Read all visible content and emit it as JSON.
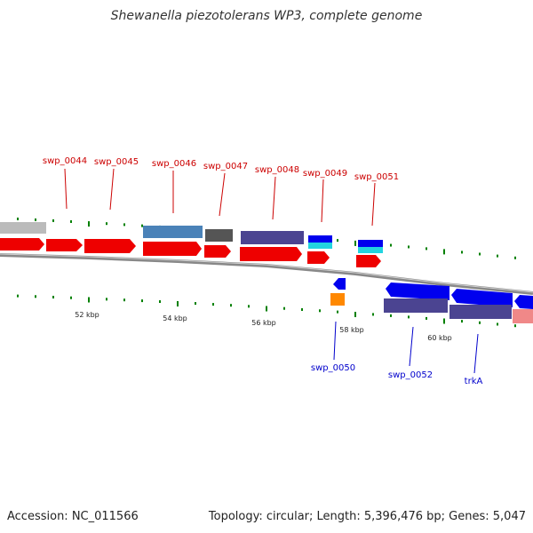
{
  "map": {
    "title": "Shewanella piezotolerans WP3, complete genome",
    "footer_left": "Accession: NC_011566",
    "footer_right": "Topology: circular; Length: 5,396,476 bp; Genes: 5,047",
    "colors": {
      "red": "#ee0000",
      "blue": "#0000ee",
      "gray": "#bbbbbb",
      "steelblue": "#4a82b8",
      "darkgray": "#555555",
      "slate": "#4b4491",
      "cyan": "#22d4e0",
      "orange": "#ff8800",
      "salmon": "#f08888",
      "tick": "#008000",
      "label_red": "#cc0000",
      "label_blue": "#0000cc"
    },
    "upper_labels": [
      "swp_0044",
      "swp_0045",
      "swp_0046",
      "swp_0047",
      "swp_0048",
      "swp_0049",
      "swp_0051"
    ],
    "lower_labels": [
      "swp_0050",
      "swp_0052",
      "trkA"
    ],
    "scale_labels": [
      "52 kbp",
      "54 kbp",
      "56 kbp",
      "58 kbp",
      "60 kbp"
    ]
  }
}
